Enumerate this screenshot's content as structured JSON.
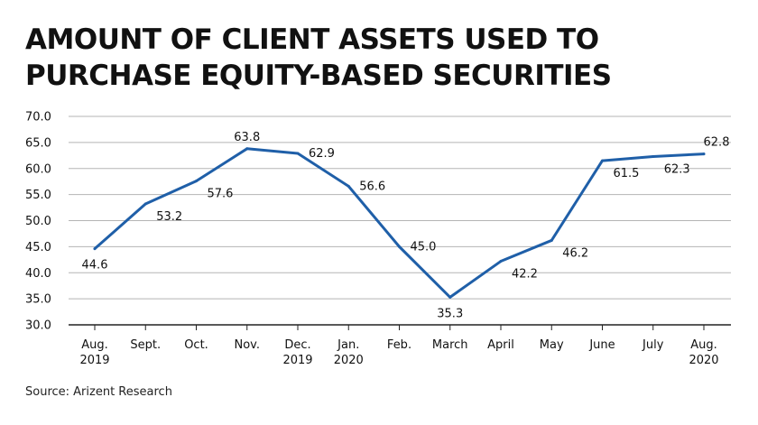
{
  "title": "AMOUNT OF CLIENT ASSETS USED TO PURCHASE EQUITY-BASED SECURITIES",
  "source": "Source: Arizent Research",
  "colors": {
    "line": "#1f5fa8",
    "grid": "#b5b5b5",
    "axis": "#222222"
  },
  "chart_data": {
    "type": "line",
    "categories": [
      [
        "Aug.",
        "2019"
      ],
      [
        "Sept."
      ],
      [
        "Oct."
      ],
      [
        "Nov."
      ],
      [
        "Dec.",
        "2019"
      ],
      [
        "Jan.",
        "2020"
      ],
      [
        "Feb."
      ],
      [
        "March"
      ],
      [
        "April"
      ],
      [
        "May"
      ],
      [
        "June"
      ],
      [
        "July"
      ],
      [
        "Aug.",
        "2020"
      ]
    ],
    "values": [
      44.6,
      53.2,
      57.6,
      63.8,
      62.9,
      56.6,
      45.0,
      35.3,
      42.2,
      46.2,
      61.5,
      62.3,
      62.8
    ],
    "value_labels": [
      "44.6",
      "53.2",
      "57.6",
      "63.8",
      "62.9",
      "56.6",
      "45.0",
      "35.3",
      "42.2",
      "46.2",
      "61.5",
      "62.3",
      "62.8"
    ],
    "yticks": [
      "30.0",
      "35.0",
      "40.0",
      "45.0",
      "50.0",
      "55.0",
      "60.0",
      "65.0",
      "70.0"
    ],
    "ylim": [
      30,
      70
    ],
    "grid": true,
    "legend": "none",
    "xlabel": "",
    "ylabel": ""
  }
}
